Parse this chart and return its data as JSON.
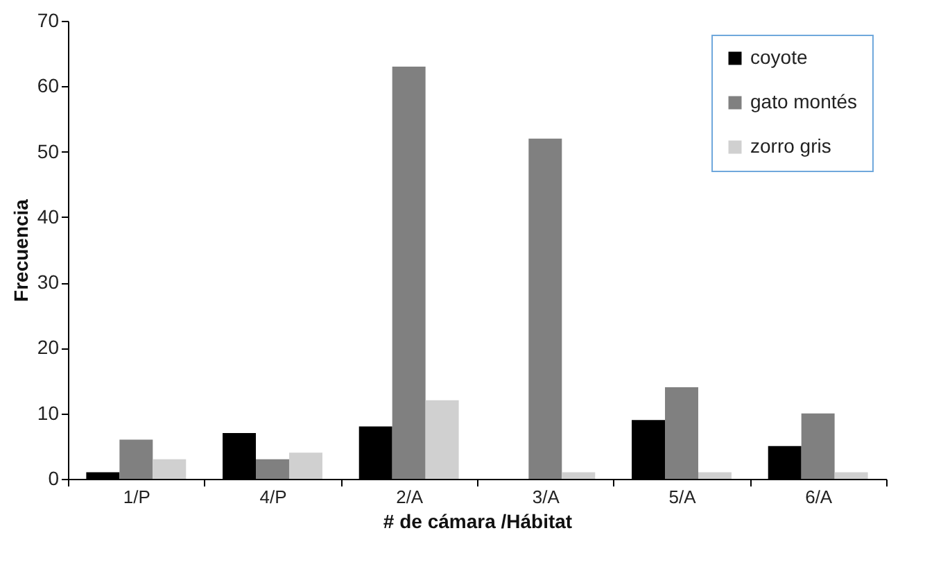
{
  "chart_data": {
    "type": "bar",
    "xlabel": "# de cámara /Hábitat",
    "ylabel": "Frecuencia",
    "categories": [
      "1/P",
      "4/P",
      "2/A",
      "3/A",
      "5/A",
      "6/A"
    ],
    "series": [
      {
        "name": "coyote",
        "color": "#000000",
        "values": [
          1,
          7,
          8,
          0,
          9,
          5
        ]
      },
      {
        "name": "gato montés",
        "color": "#808080",
        "values": [
          6,
          3,
          63,
          52,
          14,
          10
        ]
      },
      {
        "name": "zorro gris",
        "color": "#d0d0d0",
        "values": [
          3,
          4,
          12,
          1,
          1,
          1
        ]
      }
    ],
    "ylim": [
      0,
      70
    ],
    "yticks": [
      0,
      10,
      20,
      30,
      40,
      50,
      60,
      70
    ],
    "legend": "top right"
  }
}
